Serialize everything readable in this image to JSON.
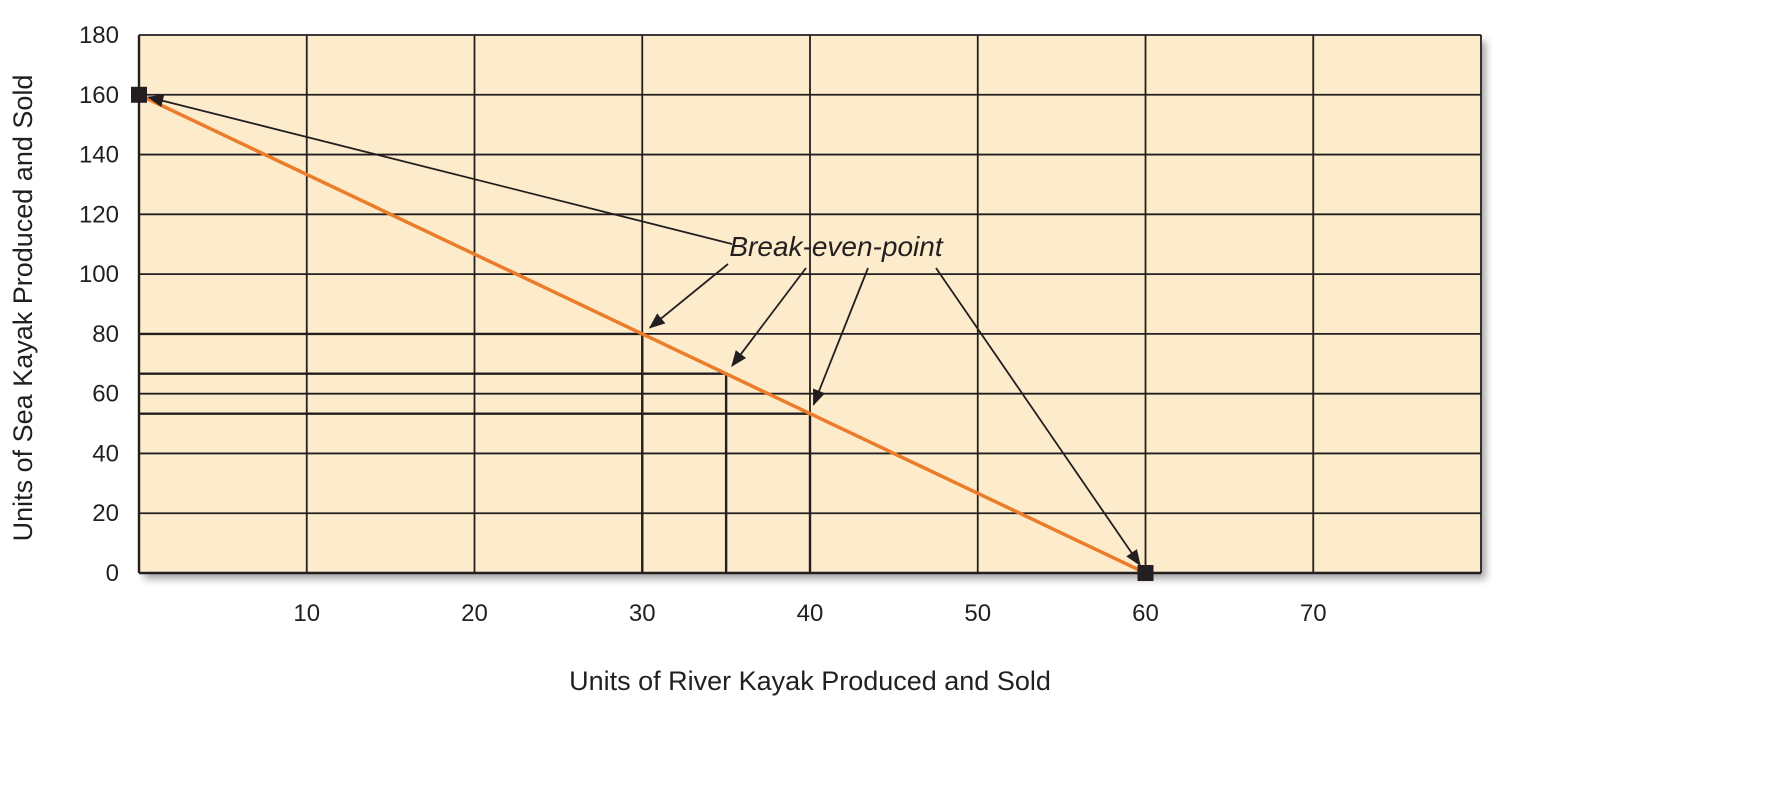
{
  "chart_data": {
    "type": "line",
    "title": "",
    "xlabel": "Units of River Kayak Produced and Sold",
    "ylabel": "Units of Sea Kayak Produced and Sold",
    "xlim": [
      0,
      80
    ],
    "ylim": [
      0,
      180
    ],
    "x_ticks": [
      10,
      20,
      30,
      40,
      50,
      60,
      70
    ],
    "y_ticks": [
      0,
      20,
      40,
      60,
      80,
      100,
      120,
      140,
      160,
      180
    ],
    "grid": true,
    "series": [
      {
        "x": [
          0,
          60
        ],
        "y": [
          160,
          0
        ],
        "color": "#ec7c2a"
      }
    ],
    "endpoints": [
      {
        "x": 0,
        "y": 160
      },
      {
        "x": 60,
        "y": 0
      }
    ],
    "reference_points": [
      {
        "x": 30,
        "y": 80
      },
      {
        "x": 35,
        "y": 66.7
      },
      {
        "x": 40,
        "y": 53.3
      }
    ],
    "annotation": {
      "text": "Break-even-point",
      "arrow_targets": [
        {
          "x": 0,
          "y": 160
        },
        {
          "x": 30,
          "y": 80
        },
        {
          "x": 35,
          "y": 66.7
        },
        {
          "x": 40,
          "y": 53.3
        },
        {
          "x": 60,
          "y": 0
        }
      ]
    },
    "plot_background": "#fdeccb",
    "line_color": "#ec7c2a",
    "grid_color": "#231f20"
  }
}
